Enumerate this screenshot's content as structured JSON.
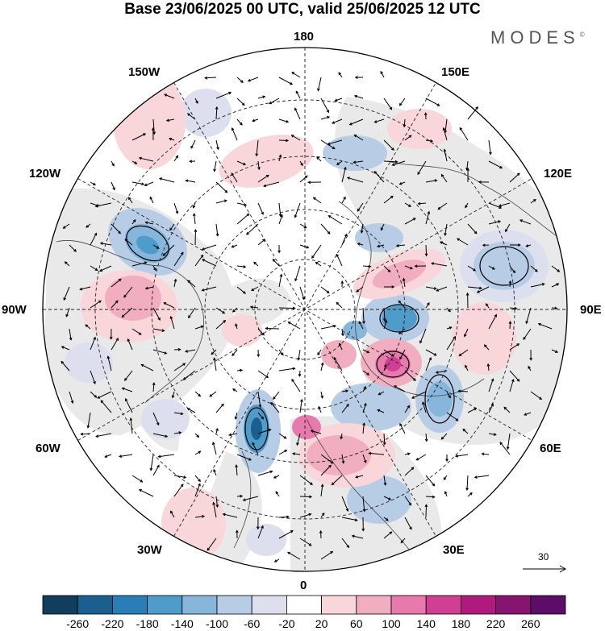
{
  "title": "Base 23/06/2025 00 UTC, valid 25/06/2025 12 UTC",
  "brand": "MODES",
  "brand_mark": "©",
  "map": {
    "projection": "north-polar-stereographic",
    "longitude_labels": {
      "top": "180",
      "bottom": "0",
      "left": "90W",
      "right": "90E",
      "upper_left_1": "150W",
      "upper_left_2": "120W",
      "lower_left_1": "60W",
      "lower_left_2": "30W",
      "upper_right_1": "150E",
      "upper_right_2": "120E",
      "lower_right_1": "60E",
      "lower_right_2": "30E"
    },
    "wind_reference_label": "30",
    "colors": {
      "land_gray": "#e9e9e9",
      "ocean_white": "#ffffff",
      "coast": "#444444"
    }
  },
  "colorbar": {
    "labels": [
      "-260",
      "-220",
      "-180",
      "-140",
      "-100",
      "-60",
      "-20",
      "20",
      "60",
      "100",
      "140",
      "180",
      "220",
      "260"
    ],
    "colors": [
      "#123e5d",
      "#1a5f8e",
      "#2b7db6",
      "#4f9bc9",
      "#86b6da",
      "#b7cce5",
      "#dedfee",
      "#ffffff",
      "#f8d6d9",
      "#f1aec0",
      "#e779ac",
      "#d13f95",
      "#b0197e",
      "#861470",
      "#5c0d68"
    ]
  }
}
